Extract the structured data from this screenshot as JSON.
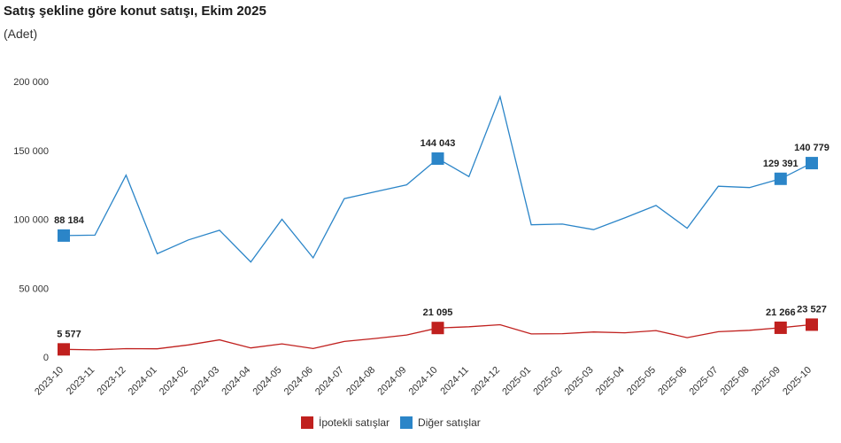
{
  "header": {
    "title": "Satış şekline göre konut satışı, Ekim 2025",
    "subtitle": "(Adet)"
  },
  "chart_data": {
    "type": "line",
    "title": "Satış şekline göre konut satışı, Ekim 2025",
    "ylabel": "(Adet)",
    "ylim": [
      0,
      200000
    ],
    "yticks": [
      0,
      50000,
      100000,
      150000,
      200000
    ],
    "ytick_labels": [
      "0",
      "50 000",
      "100 000",
      "150 000",
      "200 000"
    ],
    "legend_position": "bottom",
    "grid": false,
    "categories": [
      "2023-10",
      "2023-11",
      "2023-12",
      "2024-01",
      "2024-02",
      "2024-03",
      "2024-04",
      "2024-05",
      "2024-06",
      "2024-07",
      "2024-08",
      "2024-09",
      "2024-10",
      "2024-11",
      "2024-12",
      "2025-01",
      "2025-02",
      "2025-03",
      "2025-04",
      "2025-05",
      "2025-06",
      "2025-07",
      "2025-08",
      "2025-09",
      "2025-10"
    ],
    "series": [
      {
        "name": "İpotekli satışlar",
        "color": "#c0201e",
        "values": [
          5577,
          5200,
          6100,
          6000,
          8800,
          12500,
          6600,
          9600,
          6200,
          11300,
          13500,
          16000,
          21095,
          22000,
          23500,
          16800,
          17000,
          18200,
          17600,
          19200,
          14100,
          18400,
          19400,
          21266,
          23527
        ],
        "labels": [
          {
            "index": 0,
            "text": "5 577"
          },
          {
            "index": 12,
            "text": "21 095"
          },
          {
            "index": 23,
            "text": "21 266"
          },
          {
            "index": 24,
            "text": "23 527"
          }
        ]
      },
      {
        "name": "Diğer satışlar",
        "color": "#2b85c8",
        "values": [
          88184,
          88500,
          132000,
          75000,
          85000,
          92000,
          69000,
          100000,
          72000,
          115000,
          120000,
          125000,
          144043,
          131000,
          189000,
          96000,
          96500,
          92500,
          101000,
          110000,
          93500,
          124000,
          123000,
          129391,
          140779
        ],
        "labels": [
          {
            "index": 0,
            "text": "88 184"
          },
          {
            "index": 12,
            "text": "144 043"
          },
          {
            "index": 23,
            "text": "129 391"
          },
          {
            "index": 24,
            "text": "140 779"
          }
        ]
      }
    ]
  }
}
